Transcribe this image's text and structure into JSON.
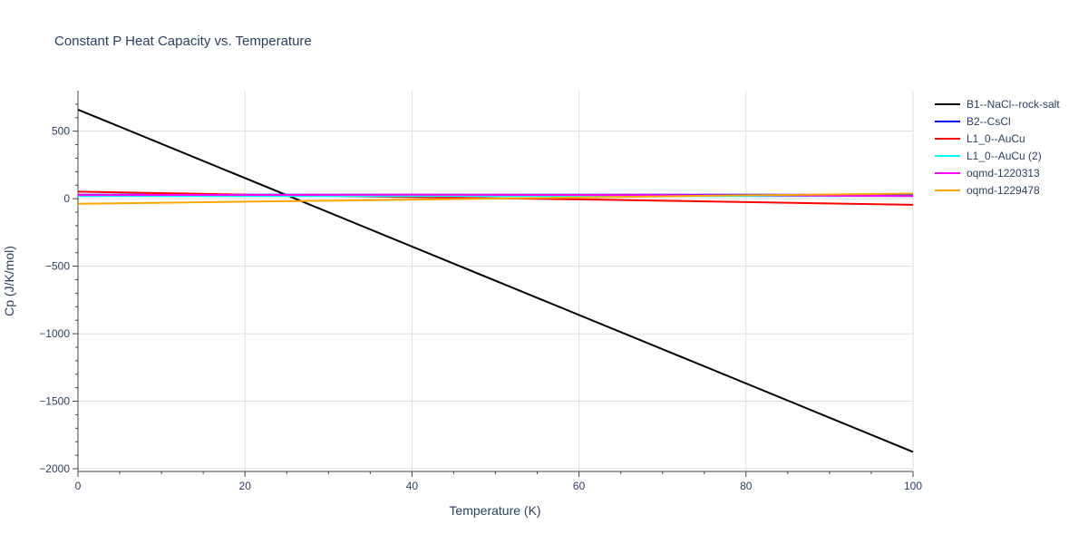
{
  "chart_data": {
    "type": "line",
    "title": "Constant P Heat Capacity vs. Temperature",
    "xlabel": "Temperature (K)",
    "ylabel": "Cp (J/K/mol)",
    "xlim": [
      0,
      100
    ],
    "ylim": [
      -2020,
      800
    ],
    "x_ticks": [
      0,
      20,
      40,
      60,
      80,
      100
    ],
    "x_tick_labels": [
      "0",
      "20",
      "40",
      "60",
      "80",
      "100"
    ],
    "y_ticks": [
      500,
      0,
      -500,
      -1000,
      -1500,
      -2000
    ],
    "y_tick_labels": [
      "500",
      "0",
      "−500",
      "−1000",
      "−1500",
      "−2000"
    ],
    "grid": true,
    "legend_position": "right",
    "series": [
      {
        "name": "B1--NaCl--rock-salt",
        "color": "#000000",
        "x": [
          0,
          100
        ],
        "y": [
          660,
          -1875
        ]
      },
      {
        "name": "B2--CsCl",
        "color": "#0000ff",
        "x": [
          0,
          50,
          100
        ],
        "y": [
          30,
          30,
          30
        ]
      },
      {
        "name": "L1_0--AuCu",
        "color": "#ff0000",
        "x": [
          0,
          20,
          40,
          60,
          80,
          100
        ],
        "y": [
          52,
          30,
          12,
          -5,
          -25,
          -45
        ]
      },
      {
        "name": "L1_0--AuCu (2)",
        "color": "#00ffff",
        "x": [
          0,
          50,
          100
        ],
        "y": [
          20,
          20,
          20
        ]
      },
      {
        "name": "oqmd-1220313",
        "color": "#ff00ff",
        "x": [
          0,
          20,
          40,
          60,
          80,
          100
        ],
        "y": [
          27,
          28,
          29,
          28,
          25,
          20
        ]
      },
      {
        "name": "oqmd-1229478",
        "color": "#ffa500",
        "x": [
          0,
          20,
          40,
          60,
          80,
          100
        ],
        "y": [
          -38,
          -22,
          -8,
          10,
          25,
          38
        ]
      }
    ]
  }
}
